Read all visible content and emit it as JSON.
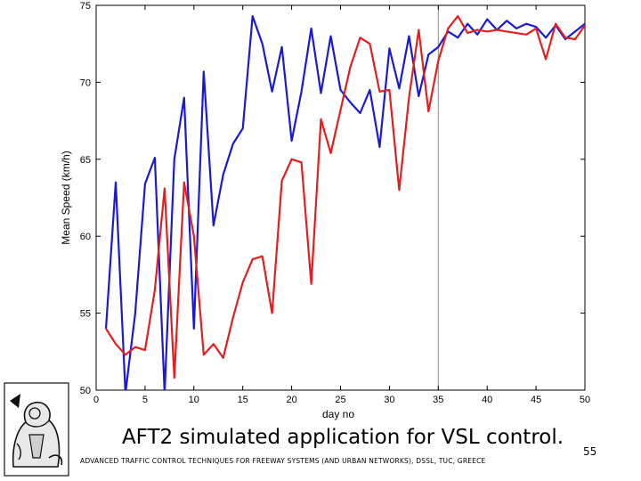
{
  "slide": {
    "caption": "AFT2 simulated application for VSL control.",
    "footer": "ADVANCED TRAFFIC CONTROL TECHNIQUES FOR FREEWAY SYSTEMS (AND URBAN NETWORKS), DSSL, TUC, GREECE",
    "page_number": "55"
  },
  "chart_data": {
    "type": "line",
    "title": "",
    "xlabel": "day no",
    "ylabel": "Mean Speed (km/h)",
    "xlim": [
      0,
      50
    ],
    "ylim": [
      50,
      75
    ],
    "xticks": [
      0,
      5,
      10,
      15,
      20,
      25,
      30,
      35,
      40,
      45,
      50
    ],
    "yticks": [
      50,
      55,
      60,
      65,
      70,
      75
    ],
    "grid": false,
    "legend": "none",
    "reference_line_x": 35,
    "series": [
      {
        "color": "#1a1ad0",
        "points": [
          [
            1,
            54.0
          ],
          [
            2,
            63.5
          ],
          [
            3,
            49.8
          ],
          [
            4,
            55.0
          ],
          [
            5,
            63.4
          ],
          [
            6,
            65.1
          ],
          [
            7,
            49.8
          ],
          [
            8,
            65.0
          ],
          [
            9,
            69.0
          ],
          [
            10,
            54.0
          ],
          [
            11,
            70.7
          ],
          [
            12,
            60.7
          ],
          [
            13,
            64.0
          ],
          [
            14,
            66.0
          ],
          [
            15,
            67.0
          ],
          [
            16,
            74.3
          ],
          [
            17,
            72.5
          ],
          [
            18,
            69.4
          ],
          [
            19,
            72.3
          ],
          [
            20,
            66.2
          ],
          [
            21,
            69.4
          ],
          [
            22,
            73.5
          ],
          [
            23,
            69.3
          ],
          [
            24,
            73.0
          ],
          [
            25,
            69.5
          ],
          [
            26,
            68.7
          ],
          [
            27,
            68.0
          ],
          [
            28,
            69.5
          ],
          [
            29,
            65.8
          ],
          [
            30,
            72.2
          ],
          [
            31,
            69.6
          ],
          [
            32,
            73.0
          ],
          [
            33,
            69.1
          ],
          [
            34,
            71.8
          ],
          [
            35,
            72.3
          ],
          [
            36,
            73.3
          ],
          [
            37,
            72.9
          ],
          [
            38,
            73.8
          ],
          [
            39,
            73.1
          ],
          [
            40,
            74.1
          ],
          [
            41,
            73.4
          ],
          [
            42,
            74.0
          ],
          [
            43,
            73.5
          ],
          [
            44,
            73.8
          ],
          [
            45,
            73.6
          ],
          [
            46,
            72.9
          ],
          [
            47,
            73.7
          ],
          [
            48,
            72.8
          ],
          [
            49,
            73.3
          ],
          [
            50,
            73.8
          ]
        ]
      },
      {
        "color": "#e02020",
        "points": [
          [
            1,
            54.0
          ],
          [
            2,
            53.0
          ],
          [
            3,
            52.3
          ],
          [
            4,
            52.8
          ],
          [
            5,
            52.6
          ],
          [
            6,
            56.5
          ],
          [
            7,
            63.1
          ],
          [
            8,
            50.8
          ],
          [
            9,
            63.5
          ],
          [
            10,
            60.0
          ],
          [
            11,
            52.3
          ],
          [
            12,
            53.0
          ],
          [
            13,
            52.1
          ],
          [
            14,
            54.7
          ],
          [
            15,
            57.0
          ],
          [
            16,
            58.5
          ],
          [
            17,
            58.7
          ],
          [
            18,
            55.0
          ],
          [
            19,
            63.6
          ],
          [
            20,
            65.0
          ],
          [
            21,
            64.8
          ],
          [
            22,
            56.9
          ],
          [
            23,
            67.6
          ],
          [
            24,
            65.4
          ],
          [
            25,
            68.2
          ],
          [
            26,
            71.0
          ],
          [
            27,
            72.9
          ],
          [
            28,
            72.5
          ],
          [
            29,
            69.4
          ],
          [
            30,
            69.5
          ],
          [
            31,
            63.0
          ],
          [
            32,
            69.0
          ],
          [
            33,
            73.4
          ],
          [
            34,
            68.1
          ],
          [
            35,
            71.4
          ],
          [
            36,
            73.5
          ],
          [
            37,
            74.3
          ],
          [
            38,
            73.2
          ],
          [
            39,
            73.4
          ],
          [
            40,
            73.3
          ],
          [
            41,
            73.4
          ],
          [
            42,
            73.3
          ],
          [
            43,
            73.2
          ],
          [
            44,
            73.1
          ],
          [
            45,
            73.5
          ],
          [
            46,
            71.5
          ],
          [
            47,
            73.8
          ],
          [
            48,
            72.9
          ],
          [
            49,
            72.8
          ],
          [
            50,
            73.7
          ]
        ]
      }
    ]
  }
}
